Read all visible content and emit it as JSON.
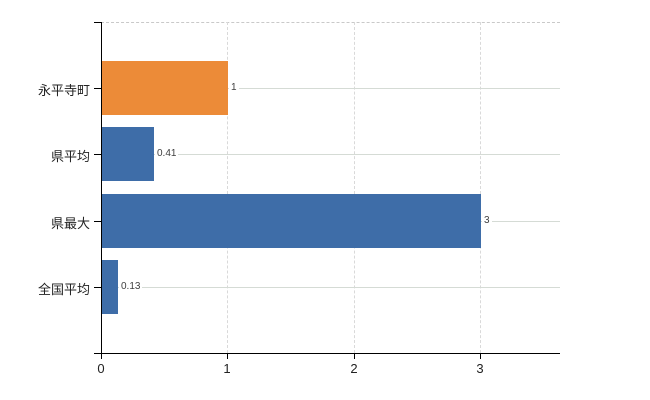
{
  "chart_data": {
    "type": "bar",
    "orientation": "horizontal",
    "title": "",
    "xlabel": "",
    "ylabel": "",
    "categories": [
      "永平寺町",
      "県平均",
      "県最大",
      "全国平均"
    ],
    "values": [
      1,
      0.41,
      3,
      0.13
    ],
    "value_labels": [
      "1",
      "0.41",
      "3",
      "0.13"
    ],
    "bar_colors": [
      "#EC8B38",
      "#3E6DA8",
      "#3E6DA8",
      "#3E6DA8"
    ],
    "x_ticks": [
      0,
      1,
      2,
      3
    ],
    "x_tick_labels": [
      "0",
      "1",
      "2",
      "3"
    ],
    "xlim": [
      0,
      3.63
    ],
    "grid": true,
    "legend": false,
    "colors": {
      "axis": "#000000",
      "h_gridline": "#d5dbd5",
      "v_gridline": "#d9d9d9",
      "top_border": "#c9c9c9",
      "category_text": "#222222",
      "value_text": "#404040",
      "tick_text": "#222222",
      "background": "#ffffff"
    }
  }
}
